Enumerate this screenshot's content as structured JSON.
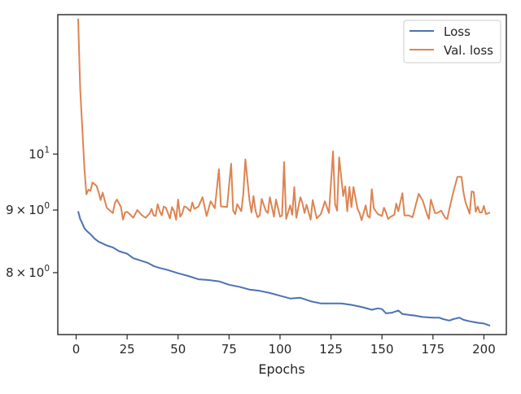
{
  "chart_data": {
    "type": "line",
    "title": "",
    "xlabel": "Epochs",
    "ylabel": "",
    "yscale": "log",
    "xlim": [
      -9,
      211
    ],
    "ylim": [
      7.12,
      13.0
    ],
    "grid": false,
    "legend_position": "top-right",
    "x_ticks": [
      0,
      25,
      50,
      75,
      100,
      125,
      150,
      175,
      200
    ],
    "x_tick_labels": [
      "0",
      "25",
      "50",
      "75",
      "100",
      "125",
      "150",
      "175",
      "200"
    ],
    "y_ticks": [
      {
        "value": 8,
        "mantissa": "8",
        "base": "10",
        "exponent": "0"
      },
      {
        "value": 9,
        "mantissa": "9",
        "base": "10",
        "exponent": "0"
      },
      {
        "value": 10,
        "mantissa": "",
        "base": "10",
        "exponent": "1"
      }
    ],
    "series": [
      {
        "name": "Loss",
        "color": "#4c72b0",
        "x": [
          1,
          2,
          3,
          4,
          5,
          7,
          9,
          11,
          13,
          15,
          18,
          21,
          25,
          28,
          31,
          35,
          38,
          41,
          45,
          50,
          55,
          60,
          65,
          70,
          75,
          80,
          85,
          90,
          95,
          100,
          105,
          110,
          115,
          120,
          125,
          130,
          135,
          140,
          145,
          148,
          150,
          152,
          155,
          158,
          160,
          163,
          166,
          170,
          175,
          178,
          180,
          183,
          185,
          188,
          190,
          193,
          195,
          197,
          200,
          203
        ],
        "y": [
          8.98,
          8.85,
          8.78,
          8.7,
          8.66,
          8.6,
          8.53,
          8.48,
          8.45,
          8.42,
          8.39,
          8.33,
          8.29,
          8.22,
          8.19,
          8.15,
          8.1,
          8.07,
          8.04,
          7.99,
          7.95,
          7.9,
          7.89,
          7.87,
          7.82,
          7.79,
          7.75,
          7.73,
          7.7,
          7.66,
          7.62,
          7.63,
          7.58,
          7.55,
          7.55,
          7.55,
          7.53,
          7.5,
          7.46,
          7.48,
          7.47,
          7.41,
          7.42,
          7.45,
          7.4,
          7.39,
          7.38,
          7.36,
          7.35,
          7.35,
          7.33,
          7.31,
          7.33,
          7.35,
          7.32,
          7.3,
          7.29,
          7.28,
          7.27,
          7.24
        ]
      },
      {
        "name": "Val. loss",
        "color": "#dd8452",
        "x": [
          1,
          2,
          3,
          4,
          5,
          6,
          7,
          8,
          10,
          11,
          12,
          13,
          15,
          18,
          19,
          20,
          22,
          23,
          24,
          25,
          26,
          28,
          30,
          32,
          34,
          36,
          37,
          38,
          39,
          40,
          41,
          42,
          43,
          44,
          46,
          47,
          48,
          49,
          50,
          51,
          52,
          53,
          54,
          56,
          57,
          58,
          60,
          62,
          64,
          66,
          68,
          70,
          71,
          72,
          74,
          76,
          77,
          78,
          79,
          81,
          82,
          83,
          85,
          86,
          87,
          88,
          89,
          90,
          91,
          93,
          94,
          95,
          97,
          98,
          100,
          101,
          102,
          103,
          105,
          106,
          107,
          108,
          110,
          111,
          112,
          113,
          115,
          116,
          118,
          120,
          122,
          124,
          126,
          127,
          128,
          129,
          131,
          132,
          133,
          134,
          135,
          136,
          138,
          139,
          140,
          142,
          143,
          144,
          145,
          146,
          148,
          150,
          151,
          152,
          153,
          154,
          156,
          157,
          158,
          160,
          161,
          163,
          165,
          166,
          168,
          170,
          172,
          173,
          174,
          176,
          177,
          179,
          181,
          182,
          183,
          185,
          187,
          189,
          190,
          191,
          193,
          194,
          195,
          196,
          197,
          198,
          199,
          200,
          201,
          203
        ],
        "y": [
          12.9,
          11.3,
          10.5,
          9.75,
          9.27,
          9.35,
          9.33,
          9.48,
          9.42,
          9.31,
          9.17,
          9.3,
          9.04,
          8.95,
          9.12,
          9.18,
          9.05,
          8.84,
          8.96,
          8.97,
          8.94,
          8.87,
          9.0,
          8.92,
          8.87,
          8.94,
          9.02,
          8.91,
          8.9,
          9.1,
          8.98,
          8.91,
          9.06,
          9.04,
          8.86,
          9.05,
          8.98,
          8.84,
          9.18,
          8.89,
          8.94,
          9.06,
          9.05,
          8.98,
          9.13,
          9.02,
          9.06,
          9.22,
          8.9,
          9.15,
          9.03,
          9.72,
          9.06,
          9.06,
          9.05,
          9.82,
          8.99,
          8.93,
          9.1,
          8.98,
          9.28,
          9.9,
          9.17,
          8.96,
          9.24,
          8.99,
          8.88,
          8.91,
          9.19,
          8.99,
          8.95,
          9.22,
          8.89,
          9.18,
          8.89,
          8.91,
          9.85,
          8.85,
          9.08,
          8.92,
          9.4,
          8.87,
          9.22,
          9.12,
          8.95,
          9.09,
          8.84,
          9.17,
          8.86,
          8.93,
          9.15,
          8.95,
          10.05,
          9.1,
          8.99,
          9.94,
          9.24,
          9.41,
          8.98,
          9.4,
          9.05,
          9.4,
          9.02,
          8.95,
          8.83,
          9.08,
          8.9,
          8.87,
          9.36,
          9.03,
          8.93,
          8.9,
          9.04,
          8.96,
          8.85,
          8.88,
          8.92,
          9.11,
          8.98,
          9.29,
          8.91,
          8.91,
          8.88,
          9.01,
          9.28,
          9.16,
          8.94,
          8.85,
          9.18,
          8.95,
          8.95,
          8.99,
          8.87,
          8.85,
          9.01,
          9.31,
          9.58,
          9.58,
          9.3,
          9.13,
          8.94,
          9.32,
          9.31,
          8.97,
          9.06,
          8.96,
          8.96,
          9.07,
          8.93,
          8.96
        ]
      }
    ]
  }
}
